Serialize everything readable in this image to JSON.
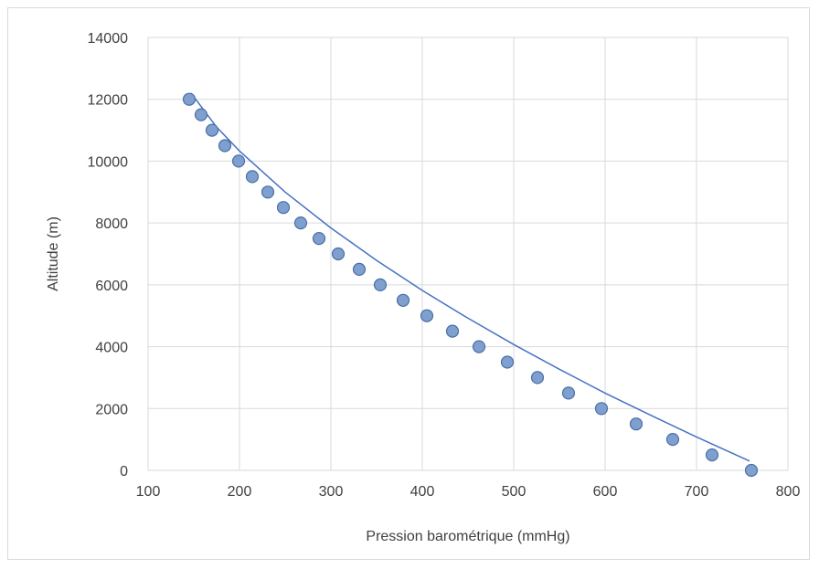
{
  "chart_data": {
    "type": "scatter",
    "title": "",
    "xlabel": "Pression barométrique (mmHg)",
    "ylabel": "Altitude (m)",
    "xlim": [
      100,
      800
    ],
    "ylim": [
      0,
      14000
    ],
    "xticks": [
      "100",
      "200",
      "300",
      "400",
      "500",
      "600",
      "700",
      "800"
    ],
    "yticks": [
      "0",
      "2000",
      "4000",
      "6000",
      "8000",
      "10000",
      "12000",
      "14000"
    ],
    "grid": true,
    "legend": "none",
    "marker_color": "#7f9fcf",
    "marker_edge_color": "#4a6fa5",
    "line_color": "#4472c4",
    "series": [
      {
        "points": [
          [
            760,
            0
          ],
          [
            717,
            500
          ],
          [
            674,
            1000
          ],
          [
            634,
            1500
          ],
          [
            596,
            2000
          ],
          [
            560,
            2500
          ],
          [
            526,
            3000
          ],
          [
            493,
            3500
          ],
          [
            462,
            4000
          ],
          [
            433,
            4500
          ],
          [
            405,
            5000
          ],
          [
            379,
            5500
          ],
          [
            354,
            6000
          ],
          [
            331,
            6500
          ],
          [
            308,
            7000
          ],
          [
            287,
            7500
          ],
          [
            267,
            8000
          ],
          [
            248,
            8500
          ],
          [
            231,
            9000
          ],
          [
            214,
            9500
          ],
          [
            199,
            10000
          ],
          [
            184,
            10500
          ],
          [
            170,
            11000
          ],
          [
            158,
            11500
          ],
          [
            145,
            12000
          ]
        ],
        "trendline": [
          [
            758,
            300
          ],
          [
            700,
            1080
          ],
          [
            650,
            1780
          ],
          [
            600,
            2500
          ],
          [
            550,
            3270
          ],
          [
            500,
            4070
          ],
          [
            450,
            4920
          ],
          [
            400,
            5820
          ],
          [
            350,
            6790
          ],
          [
            300,
            7840
          ],
          [
            250,
            9000
          ],
          [
            200,
            10330
          ],
          [
            175,
            11100
          ],
          [
            147,
            12200
          ]
        ]
      }
    ]
  }
}
